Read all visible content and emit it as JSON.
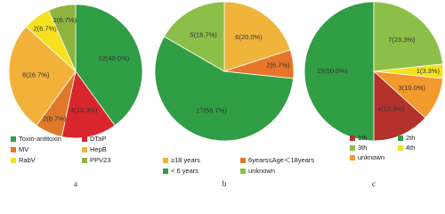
{
  "chart_data": [
    {
      "type": "pie",
      "label": "a",
      "categories": [
        "Toxin-antitoxin",
        "DTaP",
        "MV",
        "HepB",
        "RabV",
        "PPV23"
      ],
      "values": [
        12,
        4,
        2,
        8,
        2,
        2
      ],
      "value_labels": [
        "12(40.0%)",
        "4(13.3%)",
        "2(6.7%)",
        "8(26.7%)",
        "2(6.7%)",
        "2(6.7%)"
      ],
      "colors": [
        "#2f9e44",
        "#d9262c",
        "#e0782a",
        "#f2b23a",
        "#f5e11f",
        "#8fb43e"
      ]
    },
    {
      "type": "pie",
      "label": "b",
      "categories": [
        "≥18 years",
        "6years≤Age＜18years",
        "< 6 years",
        "unknown"
      ],
      "values": [
        6,
        2,
        17,
        5
      ],
      "value_labels": [
        "6(20.0%)",
        "2(6.7%)",
        "17(56.7%)",
        "5(16.7%)"
      ],
      "colors": [
        "#f0b43a",
        "#e8762a",
        "#2f9e44",
        "#8cbf48"
      ]
    },
    {
      "type": "pie",
      "label": "c",
      "categories": [
        "1th",
        "2th",
        "3th",
        "4th",
        "unknown"
      ],
      "values": [
        4,
        15,
        7,
        1,
        3
      ],
      "value_labels": [
        "4(13.3%)",
        "15(50.0%)",
        "7(23.3%)",
        "1(3.3%)",
        "3(10.0%)"
      ],
      "colors": [
        "#b5312c",
        "#2f9e44",
        "#8cbf48",
        "#f5e11f",
        "#f29a2e"
      ]
    }
  ]
}
